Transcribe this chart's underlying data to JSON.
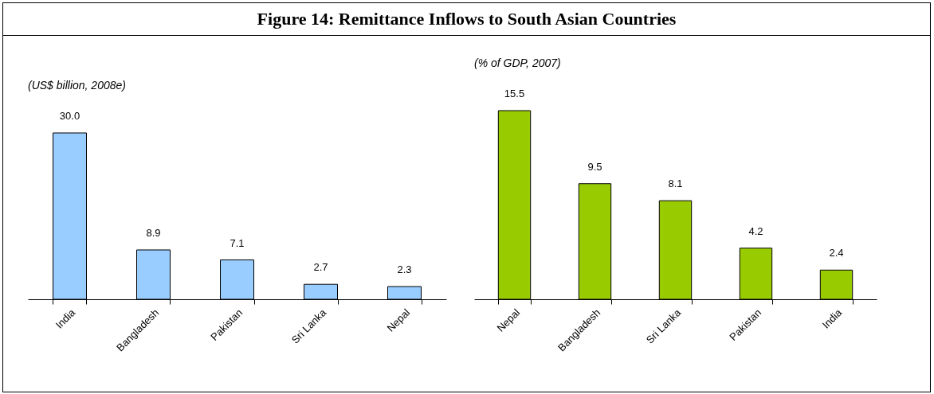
{
  "chart_data": [
    {
      "type": "other",
      "title": "Figure 14: Remittance Inflows to South Asian Countries"
    },
    {
      "type": "bar",
      "subtitle": "(US$ billion, 2008e)",
      "categories": [
        "India",
        "Bangladesh",
        "Pakistan",
        "Sri Lanka",
        "Nepal"
      ],
      "values": [
        30.0,
        8.9,
        7.1,
        2.7,
        2.3
      ],
      "value_labels": [
        "30.0",
        "8.9",
        "7.1",
        "2.7",
        "2.3"
      ],
      "color": "#99ccff",
      "tick_labels": "x",
      "grid": false
    },
    {
      "type": "bar",
      "subtitle": "(% of GDP, 2007)",
      "categories": [
        "Nepal",
        "Bangladesh",
        "Sri Lanka",
        "Pakistan",
        "India"
      ],
      "values": [
        15.5,
        9.5,
        8.1,
        4.2,
        2.4
      ],
      "value_labels": [
        "15.5",
        "9.5",
        "8.1",
        "4.2",
        "2.4"
      ],
      "color": "#99cc00",
      "tick_labels": "x",
      "grid": false
    }
  ]
}
